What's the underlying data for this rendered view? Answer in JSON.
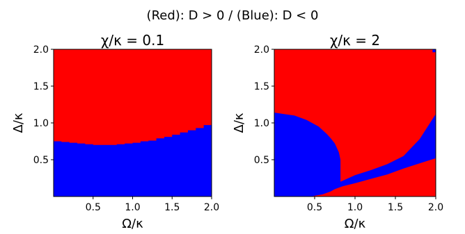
{
  "figure_title": "(Red): D > 0  / (Blue): D < 0",
  "colors": {
    "red": "#ff0000",
    "blue": "#0000ff"
  },
  "chart_data": [
    {
      "type": "heatmap",
      "title": "χ/κ = 0.1",
      "xlabel": "Ω/κ",
      "ylabel": "Δ/κ",
      "xlim": [
        0.0,
        2.0
      ],
      "ylim": [
        0.0,
        2.0
      ],
      "xticks": [
        "0.5",
        "1.0",
        "1.5",
        "2.0"
      ],
      "yticks": [
        "0.5",
        "1.0",
        "1.5",
        "2.0"
      ],
      "legend": {
        "red": "D > 0",
        "blue": "D < 0"
      },
      "boundary": {
        "x": [
          0.0,
          0.1,
          0.2,
          0.3,
          0.4,
          0.5,
          0.6,
          0.7,
          0.8,
          0.9,
          1.0,
          1.1,
          1.2,
          1.3,
          1.4,
          1.5,
          1.6,
          1.7,
          1.8,
          1.9,
          2.0
        ],
        "y": [
          0.75,
          0.74,
          0.73,
          0.72,
          0.71,
          0.7,
          0.7,
          0.7,
          0.71,
          0.72,
          0.73,
          0.75,
          0.76,
          0.79,
          0.81,
          0.84,
          0.87,
          0.9,
          0.93,
          0.97,
          1.0
        ],
        "blue_region": "below"
      }
    },
    {
      "type": "heatmap",
      "title": "χ/κ = 2",
      "xlabel": "Ω/κ",
      "ylabel": "Δ/κ",
      "xlim": [
        0.0,
        2.0
      ],
      "ylim": [
        0.0,
        2.0
      ],
      "xticks": [
        "0.5",
        "1.0",
        "1.5",
        "2.0"
      ],
      "yticks": [
        "0.5",
        "1.0",
        "1.5",
        "2.0"
      ],
      "legend": {
        "red": "D > 0",
        "blue": "D < 0"
      },
      "blue_regions": [
        {
          "name": "lobe",
          "x": [
            0.0,
            0.15,
            0.3,
            0.45,
            0.6,
            0.7,
            0.78,
            0.82,
            0.82,
            0.8,
            0.75,
            0.7,
            0.65,
            0.55,
            0.4,
            0.25,
            0.12,
            0.0
          ],
          "y": [
            0.0,
            0.0,
            0.0,
            0.0,
            0.03,
            0.07,
            0.12,
            0.15,
            0.5,
            0.6,
            0.72,
            0.79,
            0.85,
            0.95,
            1.04,
            1.1,
            1.12,
            1.14
          ]
        },
        {
          "name": "band",
          "x": [
            0.82,
            1.0,
            1.2,
            1.4,
            1.6,
            1.8,
            2.0,
            2.0,
            1.8,
            1.6,
            1.4,
            1.2,
            1.0,
            0.85,
            0.7,
            0.82
          ],
          "y": [
            0.2,
            0.29,
            0.36,
            0.44,
            0.55,
            0.78,
            1.12,
            0.52,
            0.45,
            0.38,
            0.3,
            0.24,
            0.18,
            0.14,
            0.08,
            0.2
          ]
        },
        {
          "name": "corner",
          "x": [
            1.96,
            2.0,
            2.0,
            1.96
          ],
          "y": [
            1.96,
            1.96,
            2.0,
            2.0
          ]
        }
      ]
    }
  ]
}
